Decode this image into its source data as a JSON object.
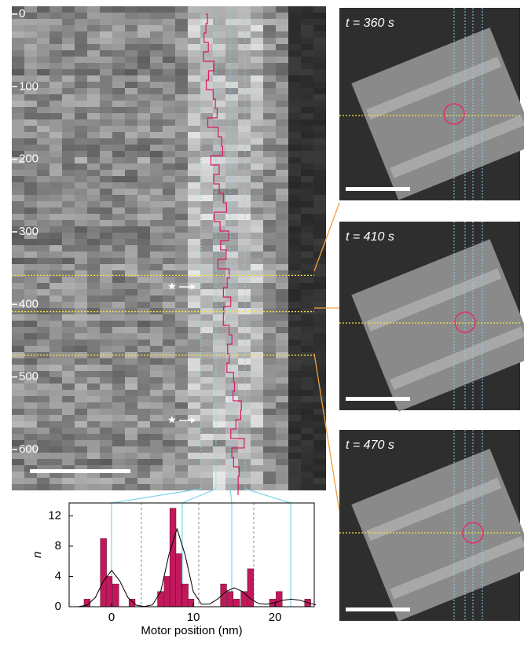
{
  "chart_data": [
    {
      "type": "kymograph",
      "ylim": [
        0,
        650
      ],
      "yticks": [
        0,
        100,
        200,
        300,
        400,
        500,
        600
      ],
      "time_lines": [
        360,
        410,
        470
      ]
    },
    {
      "type": "bar",
      "xlabel": "Motor position (nm)",
      "ylabel": "n",
      "color": "#c2185b",
      "x": [
        -3,
        -1,
        -0.3,
        0.5,
        2.5,
        6,
        6.8,
        7.5,
        8.2,
        9,
        9.7,
        13.7,
        14.5,
        15.3,
        16.2,
        17,
        19.7,
        20.5,
        24
      ],
      "values": [
        1,
        9,
        4,
        3,
        1,
        2,
        4,
        13,
        7,
        3,
        1,
        3,
        2,
        1,
        2,
        5,
        1,
        2,
        1
      ],
      "xlim": [
        -5.2,
        24.8
      ],
      "ylim": [
        0,
        13.7
      ],
      "xticks": [
        0,
        10,
        20
      ],
      "yticks": [
        0,
        4,
        8,
        12
      ],
      "fit": {
        "x": [
          -4,
          -3,
          -2,
          -1,
          0,
          1,
          2,
          3,
          4,
          5,
          6,
          7,
          8,
          9,
          10,
          11,
          12,
          13,
          14,
          15,
          16,
          17,
          18,
          19,
          20,
          21,
          22,
          23,
          24,
          25
        ],
        "values": [
          0.02,
          0.21,
          1.2,
          3.39,
          4.8,
          3.39,
          1.2,
          0.21,
          0.03,
          0.25,
          1.97,
          6.82,
          10.3,
          6.82,
          1.97,
          0.32,
          0.35,
          1.03,
          2.0,
          2.5,
          2.0,
          1.05,
          0.42,
          0.32,
          0.55,
          0.86,
          1,
          0.86,
          0.54,
          0.25
        ]
      }
    }
  ],
  "panels": [
    {
      "label": "t = 360 s"
    },
    {
      "label": "t = 410 s"
    },
    {
      "label": "t = 470 s"
    }
  ]
}
